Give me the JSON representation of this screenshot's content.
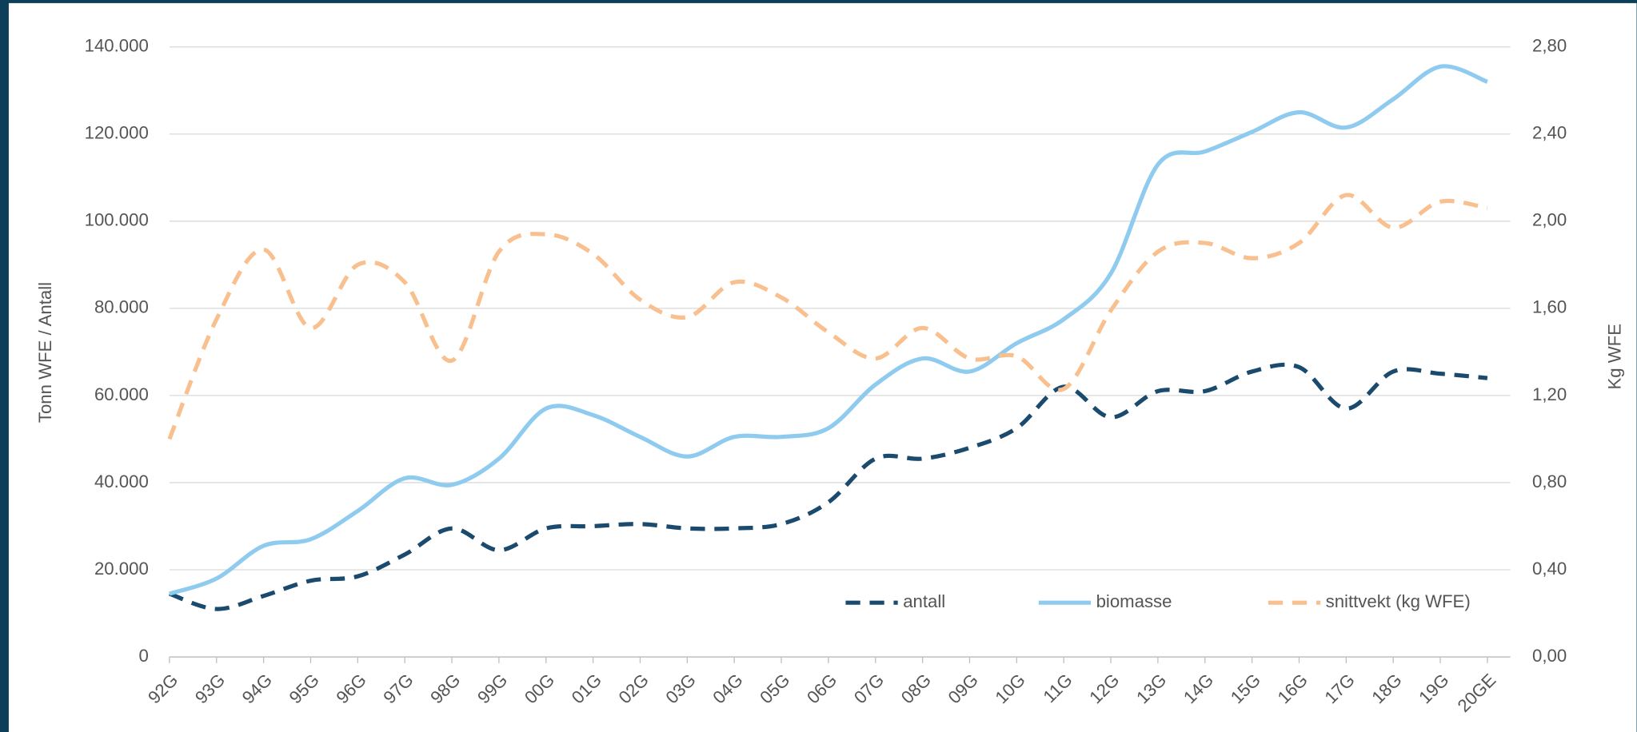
{
  "chart_data": {
    "type": "line",
    "categories": [
      "92G",
      "93G",
      "94G",
      "95G",
      "96G",
      "97G",
      "98G",
      "99G",
      "00G",
      "01G",
      "02G",
      "03G",
      "04G",
      "05G",
      "06G",
      "07G",
      "08G",
      "09G",
      "10G",
      "11G",
      "12G",
      "13G",
      "14G",
      "15G",
      "16G",
      "17G",
      "18G",
      "19G",
      "20GE"
    ],
    "series": [
      {
        "name": "antall",
        "color": "#1a4a6e",
        "dash": true,
        "values": [
          14500,
          11000,
          14000,
          17500,
          18500,
          23500,
          29500,
          24500,
          29500,
          30000,
          30500,
          29500,
          29500,
          30500,
          35500,
          45500,
          45500,
          48000,
          52500,
          62000,
          55000,
          61000,
          61000,
          65500,
          66500,
          57000,
          65500,
          65000,
          64000
        ]
      },
      {
        "name": "biomasse",
        "color": "#8ecbef",
        "dash": false,
        "values": [
          14500,
          18000,
          25500,
          27000,
          33500,
          41000,
          39500,
          45500,
          57000,
          55500,
          50500,
          46000,
          50500,
          50500,
          52500,
          62500,
          68500,
          65500,
          72000,
          77500,
          88000,
          113000,
          116000,
          120500,
          125000,
          121500,
          128000,
          135500,
          132000
        ]
      },
      {
        "name": "snittvekt (kg WFE)",
        "color": "#f9c08f",
        "dash": true,
        "axis": "y2",
        "values": [
          1.0,
          1.55,
          1.87,
          1.51,
          1.8,
          1.72,
          1.36,
          1.86,
          1.94,
          1.85,
          1.64,
          1.56,
          1.72,
          1.65,
          1.49,
          1.37,
          1.51,
          1.37,
          1.38,
          1.23,
          1.59,
          1.86,
          1.9,
          1.83,
          1.9,
          2.12,
          1.97,
          2.09,
          2.06
        ]
      }
    ],
    "y_label": "Tonn WFE / Antall",
    "y2_label": "Kg WFE",
    "ylim": [
      0,
      140000
    ],
    "yticks": [
      0,
      {
        "value": 20000,
        "label": "20.000"
      },
      {
        "value": 40000,
        "label": "40.000"
      },
      {
        "value": 60000,
        "label": "60.000"
      },
      {
        "value": 80000,
        "label": "80.000"
      },
      {
        "value": 100000,
        "label": "100.000"
      },
      {
        "value": 120000,
        "label": "120.000"
      },
      {
        "value": 140000,
        "label": "140.000"
      }
    ],
    "y2lim": [
      0,
      2.8
    ],
    "y2ticks": [
      {
        "value": 0,
        "label": "0,00"
      },
      {
        "value": 0.4,
        "label": "0,40"
      },
      {
        "value": 0.8,
        "label": "0,80"
      },
      {
        "value": 1.2,
        "label": "1,20"
      },
      {
        "value": 1.6,
        "label": "1,60"
      },
      {
        "value": 2.0,
        "label": "2,00"
      },
      {
        "value": 2.4,
        "label": "2,40"
      },
      {
        "value": 2.8,
        "label": "2,80"
      }
    ],
    "grid": true,
    "legend": "bottom-right"
  }
}
